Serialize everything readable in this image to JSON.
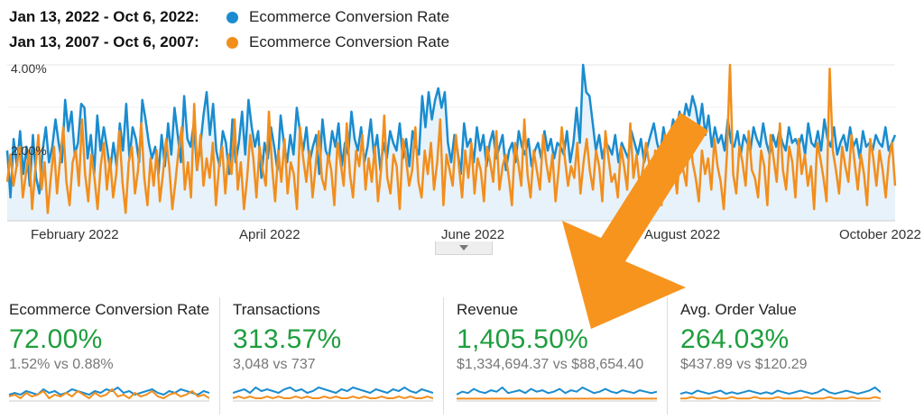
{
  "legend": [
    {
      "range": "Jan 13, 2022 - Oct 6, 2022:",
      "metric": "Ecommerce Conversion Rate",
      "color": "#1a8ccf"
    },
    {
      "range": "Jan 13, 2007 - Oct 6, 2007:",
      "metric": "Ecommerce Conversion Rate",
      "color": "#f28e1c"
    }
  ],
  "chart_data": {
    "type": "line",
    "title": "",
    "ylabel": "Ecommerce Conversion Rate",
    "ylim": [
      0,
      4.0
    ],
    "y_ticks": [
      "4.00%",
      "2.00%"
    ],
    "x_ticks": [
      "February 2022",
      "April 2022",
      "June 2022",
      "August 2022",
      "October 2022"
    ],
    "series": [
      {
        "name": "Jan 13, 2022 - Oct 6, 2022",
        "color": "#1a8ccf",
        "values": [
          1.8,
          0.6,
          2.1,
          1.4,
          2.3,
          1.2,
          1.9,
          0.9,
          2.2,
          1.1,
          0.7,
          1.8,
          2.4,
          1.5,
          1.9,
          2.6,
          2.0,
          1.5,
          3.1,
          2.3,
          2.8,
          1.7,
          2.0,
          3.0,
          2.9,
          1.6,
          2.2,
          1.2,
          2.7,
          1.8,
          2.4,
          1.9,
          1.3,
          2.0,
          1.4,
          2.5,
          1.8,
          3.0,
          1.6,
          2.4,
          2.1,
          1.5,
          3.1,
          2.6,
          2.0,
          1.6,
          1.9,
          1.2,
          2.2,
          1.4,
          2.5,
          1.7,
          2.9,
          2.2,
          1.5,
          3.2,
          2.1,
          1.9,
          2.5,
          1.3,
          1.9,
          2.7,
          3.3,
          2.2,
          3.0,
          1.8,
          1.4,
          2.3,
          2.0,
          1.2,
          2.6,
          1.5,
          2.0,
          2.8,
          1.7,
          3.1,
          2.4,
          1.9,
          2.3,
          1.1,
          2.0,
          1.6,
          2.4,
          1.9,
          1.3,
          2.7,
          2.0,
          1.5,
          2.2,
          1.7,
          2.9,
          2.3,
          1.8,
          2.4,
          1.5,
          1.9,
          2.2,
          1.2,
          2.6,
          1.8,
          1.6,
          2.3,
          1.9,
          2.5,
          1.4,
          2.0,
          1.7,
          2.8,
          2.1,
          1.8,
          2.4,
          1.5,
          1.9,
          2.6,
          1.7,
          2.2,
          1.3,
          2.0,
          1.6,
          2.3,
          2.0,
          1.8,
          2.5,
          1.6,
          2.1,
          1.4,
          2.3,
          1.9,
          1.7,
          3.2,
          2.4,
          3.3,
          2.6,
          3.1,
          3.4,
          2.9,
          3.3,
          2.0,
          1.5,
          2.2,
          1.8,
          1.2,
          2.5,
          1.9,
          2.1,
          1.5,
          2.4,
          1.8,
          2.2,
          1.4,
          2.0,
          2.3,
          1.6,
          1.9,
          2.2,
          1.3,
          1.8,
          2.0,
          1.5,
          2.3,
          1.9,
          1.7,
          2.1,
          1.4,
          1.8,
          2.0,
          1.6,
          2.3,
          1.8,
          2.1,
          1.6,
          2.0,
          1.9,
          1.7,
          2.3,
          1.5,
          2.0,
          2.9,
          2.0,
          4.0,
          3.3,
          3.2,
          2.5,
          1.8,
          2.2,
          1.6,
          2.0,
          1.9,
          1.7,
          2.2,
          1.5,
          2.0,
          1.8,
          1.6,
          2.3,
          2.0,
          1.7,
          2.1,
          1.5,
          1.9,
          2.2,
          2.5,
          2.0,
          1.7,
          2.4,
          1.9,
          2.1,
          2.6,
          2.3,
          2.8,
          2.5,
          3.0,
          2.7,
          3.2,
          2.9,
          2.4,
          3.0,
          2.2,
          2.7,
          1.9,
          2.4,
          2.0,
          2.2,
          1.8,
          2.6,
          2.0,
          1.9,
          2.3,
          1.7,
          2.2,
          2.0,
          1.8,
          2.4,
          2.1,
          1.9,
          2.5,
          2.0,
          1.7,
          2.2,
          1.9,
          2.3,
          2.0,
          1.8,
          2.4,
          2.0,
          2.1,
          1.9,
          2.2,
          1.7,
          2.5,
          2.0,
          1.9,
          2.3,
          1.8,
          2.6,
          2.1,
          1.9,
          2.4,
          1.7,
          2.0,
          2.2,
          1.8,
          2.4,
          1.9,
          2.1,
          1.6,
          2.3,
          1.9,
          2.0,
          1.8,
          2.2,
          2.0,
          1.9,
          2.4,
          1.8,
          2.0,
          2.2
        ]
      },
      {
        "name": "Jan 13, 2007 - Oct 6, 2007",
        "color": "#f28e1c",
        "values": [
          1.0,
          1.7,
          0.9,
          1.4,
          1.9,
          0.6,
          1.2,
          1.8,
          0.3,
          1.3,
          2.2,
          0.8,
          1.5,
          0.2,
          1.1,
          1.9,
          0.7,
          1.6,
          2.4,
          1.0,
          0.4,
          1.5,
          1.8,
          0.9,
          2.6,
          1.2,
          0.5,
          1.7,
          1.1,
          0.3,
          1.4,
          2.0,
          0.8,
          1.6,
          0.6,
          1.2,
          2.3,
          1.0,
          0.2,
          1.5,
          1.9,
          0.7,
          1.3,
          2.5,
          1.1,
          0.4,
          1.6,
          0.9,
          1.8,
          0.5,
          1.2,
          2.1,
          1.4,
          0.3,
          1.0,
          1.8,
          2.4,
          0.8,
          1.5,
          0.6,
          3.0,
          1.3,
          2.2,
          0.9,
          1.6,
          1.1,
          2.0,
          0.4,
          1.4,
          1.9,
          0.7,
          1.7,
          1.2,
          2.6,
          0.8,
          1.5,
          0.3,
          1.1,
          2.2,
          1.6,
          0.6,
          1.9,
          1.3,
          0.9,
          2.8,
          1.4,
          0.5,
          1.8,
          1.0,
          2.1,
          0.7,
          1.5,
          1.2,
          0.3,
          2.4,
          1.6,
          1.0,
          1.8,
          0.6,
          1.4,
          2.3,
          1.1,
          0.8,
          1.7,
          1.3,
          0.4,
          2.0,
          1.5,
          0.9,
          2.5,
          1.2,
          0.6,
          1.8,
          1.4,
          2.2,
          0.8,
          1.6,
          1.0,
          1.9,
          0.5,
          1.3,
          2.7,
          1.1,
          0.7,
          1.7,
          1.4,
          0.3,
          2.1,
          1.6,
          0.9,
          1.3,
          2.4,
          1.0,
          0.6,
          1.8,
          1.2,
          2.0,
          0.8,
          1.5,
          2.6,
          0.4,
          1.7,
          1.3,
          0.9,
          2.2,
          1.4,
          0.6,
          1.8,
          1.1,
          2.0,
          0.7,
          1.6,
          1.3,
          0.5,
          1.9,
          1.5,
          1.0,
          2.3,
          0.8,
          1.4,
          1.7,
          1.1,
          0.4,
          2.0,
          1.5,
          0.9,
          2.6,
          1.2,
          0.6,
          1.8,
          1.3,
          0.8,
          2.2,
          1.5,
          1.0,
          1.7,
          0.5,
          1.3,
          2.4,
          1.6,
          0.9,
          1.4,
          1.1,
          2.0,
          0.7,
          1.5,
          2.1,
          1.3,
          0.8,
          1.8,
          1.4,
          0.5,
          2.3,
          1.6,
          1.0,
          1.2,
          0.6,
          1.9,
          1.4,
          0.8,
          2.5,
          1.1,
          1.7,
          0.9,
          1.3,
          2.0,
          1.5,
          0.6,
          1.8,
          1.2,
          0.4,
          2.2,
          1.6,
          1.0,
          1.4,
          0.7,
          1.9,
          1.3,
          0.9,
          2.4,
          1.5,
          1.1,
          0.5,
          1.8,
          1.2,
          1.6,
          0.8,
          2.1,
          1.4,
          1.0,
          0.3,
          1.7,
          4.0,
          1.2,
          0.7,
          1.9,
          1.5,
          0.9,
          2.3,
          1.3,
          1.1,
          0.6,
          1.8,
          1.4,
          0.4,
          2.2,
          1.6,
          1.0,
          2.5,
          1.3,
          0.8,
          1.9,
          1.5,
          0.6,
          2.1,
          1.2,
          1.7,
          0.9,
          1.4,
          0.3,
          2.0,
          1.6,
          1.1,
          0.5,
          3.9,
          1.8,
          1.3,
          0.7,
          1.9,
          1.4,
          1.0,
          2.2,
          1.5,
          0.8,
          1.7,
          1.2,
          0.4,
          2.1,
          1.6,
          0.9,
          1.8,
          1.3,
          0.6,
          1.6,
          2.0,
          0.9
        ]
      }
    ]
  },
  "metrics": [
    {
      "title": "Ecommerce Conversion Rate",
      "change": "72.00%",
      "compare": "1.52% vs 0.88%",
      "spark_current": [
        3,
        4,
        3,
        5,
        4,
        3,
        6,
        4,
        5,
        3,
        4,
        6,
        5,
        4,
        3,
        5,
        4,
        6,
        5,
        7,
        4,
        5,
        3,
        4,
        5,
        6,
        4,
        3,
        5,
        4,
        6,
        5,
        4,
        3,
        5,
        4
      ],
      "spark_previous": [
        2,
        3,
        1,
        4,
        2,
        3,
        5,
        1,
        3,
        2,
        4,
        2,
        5,
        3,
        1,
        4,
        2,
        3,
        6,
        2,
        3,
        1,
        4,
        2,
        3,
        5,
        2,
        1,
        3,
        4,
        2,
        3,
        5,
        2,
        3,
        1
      ]
    },
    {
      "title": "Transactions",
      "change": "313.57%",
      "compare": "3,048 vs 737",
      "spark_current": [
        4,
        5,
        6,
        4,
        7,
        5,
        6,
        5,
        4,
        6,
        7,
        5,
        6,
        4,
        5,
        7,
        6,
        5,
        4,
        6,
        5,
        7,
        6,
        5,
        4,
        6,
        5,
        4,
        6,
        5,
        7,
        5,
        4,
        6,
        5,
        4
      ],
      "spark_previous": [
        1,
        2,
        1,
        2,
        1,
        1,
        2,
        1,
        2,
        1,
        1,
        2,
        1,
        2,
        1,
        1,
        2,
        1,
        2,
        1,
        1,
        2,
        1,
        2,
        1,
        1,
        2,
        1,
        1,
        2,
        1,
        2,
        1,
        1,
        2,
        1
      ]
    },
    {
      "title": "Revenue",
      "change": "1,405.50%",
      "compare": "$1,334,694.37 vs $88,654.40",
      "spark_current": [
        4,
        6,
        5,
        8,
        6,
        5,
        7,
        6,
        9,
        5,
        6,
        7,
        5,
        8,
        6,
        7,
        5,
        6,
        8,
        5,
        7,
        6,
        9,
        7,
        5,
        6,
        8,
        6,
        5,
        7,
        6,
        5,
        7,
        6,
        5,
        6
      ],
      "spark_previous": [
        1,
        1,
        1,
        1,
        1,
        1,
        1,
        1,
        1,
        1,
        1,
        1,
        1,
        1,
        1,
        1,
        1,
        1,
        1,
        1,
        1,
        1,
        1,
        1,
        1,
        1,
        1,
        1,
        1,
        1,
        1,
        1,
        1,
        1,
        1,
        1
      ]
    },
    {
      "title": "Avg. Order Value",
      "change": "264.03%",
      "compare": "$437.89 vs $120.29",
      "spark_current": [
        4,
        5,
        4,
        6,
        5,
        4,
        5,
        6,
        4,
        5,
        4,
        5,
        6,
        5,
        4,
        5,
        4,
        6,
        5,
        4,
        5,
        6,
        5,
        4,
        5,
        7,
        5,
        4,
        5,
        6,
        5,
        4,
        5,
        6,
        8,
        5
      ],
      "spark_previous": [
        1,
        1,
        2,
        1,
        1,
        1,
        2,
        1,
        1,
        2,
        1,
        1,
        1,
        2,
        1,
        1,
        1,
        2,
        1,
        1,
        1,
        1,
        2,
        1,
        1,
        1,
        2,
        1,
        1,
        1,
        2,
        1,
        1,
        1,
        2,
        1
      ]
    }
  ],
  "annotation": {
    "arrow_color": "#f7941d",
    "description": "large orange arrow pointing down-left toward Revenue change"
  }
}
